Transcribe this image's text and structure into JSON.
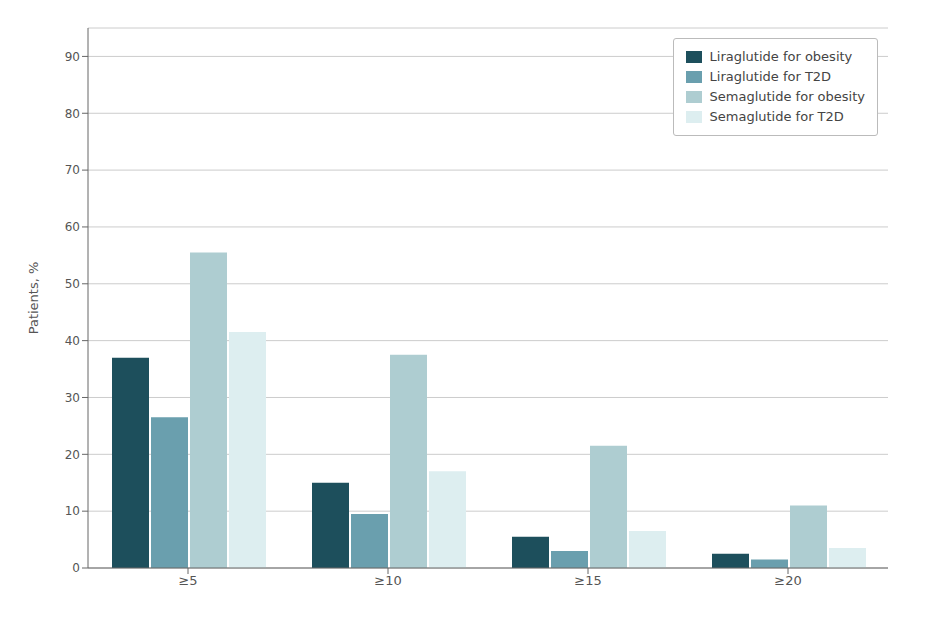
{
  "chart_data": {
    "type": "bar",
    "categories": [
      "≥5",
      "≥10",
      "≥15",
      "≥20"
    ],
    "series": [
      {
        "name": "Liraglutide for obesity",
        "color": "#1d4f5c",
        "values": [
          37,
          15,
          5.5,
          2.5
        ]
      },
      {
        "name": "Liraglutide for T2D",
        "color": "#6a9fae",
        "values": [
          26.5,
          9.5,
          3,
          1.5
        ]
      },
      {
        "name": "Semaglutide for obesity",
        "color": "#aecdd1",
        "values": [
          55.5,
          37.5,
          21.5,
          11
        ]
      },
      {
        "name": "Semaglutide for T2D",
        "color": "#ddeef0",
        "values": [
          41.5,
          17,
          6.5,
          3.5
        ]
      }
    ],
    "ylabel": "Patients, %",
    "ylim": [
      0,
      95
    ],
    "yticks": [
      0,
      10,
      20,
      30,
      40,
      50,
      60,
      70,
      80,
      90
    ],
    "grid": true,
    "legend": "upper right"
  }
}
